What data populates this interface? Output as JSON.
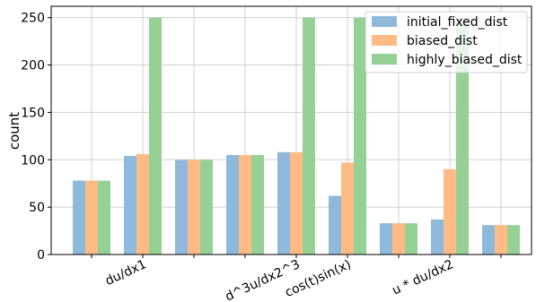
{
  "chart_data": {
    "type": "bar",
    "title": "",
    "xlabel": "",
    "ylabel": "count",
    "ylim": [
      0,
      262
    ],
    "yticks": [
      0,
      50,
      100,
      150,
      200,
      250
    ],
    "grid": true,
    "legend_position": "top-right",
    "categories_count": 9,
    "xtick_labels": [
      {
        "slot": 1,
        "label": "du/dx1"
      },
      {
        "slot": 4,
        "label": "d^3u/dx2^3"
      },
      {
        "slot": 5,
        "label": "cos(t)sin(x)"
      },
      {
        "slot": 7,
        "label": "u * du/dx2"
      }
    ],
    "series": [
      {
        "name": "initial_fixed_dist",
        "color": "#8fb9da",
        "values": [
          78,
          104,
          100,
          105,
          108,
          62,
          33,
          37,
          31
        ]
      },
      {
        "name": "biased_dist",
        "color": "#ffbb86",
        "values": [
          78,
          106,
          100,
          105,
          108,
          97,
          33,
          90,
          31
        ]
      },
      {
        "name": "highly_biased_dist",
        "color": "#95d195",
        "values": [
          78,
          250,
          100,
          105,
          250,
          250,
          33,
          250,
          31
        ]
      }
    ]
  }
}
